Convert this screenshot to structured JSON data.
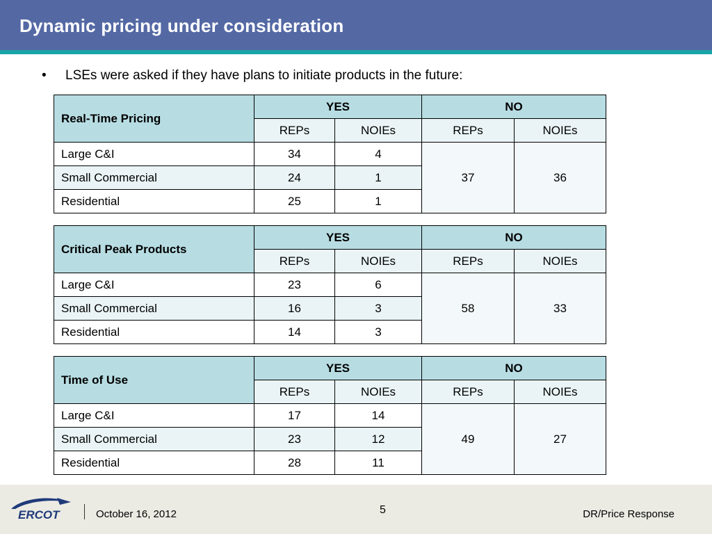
{
  "header": {
    "title": "Dynamic pricing under consideration"
  },
  "bullet": {
    "text": "LSEs were asked if they have plans to initiate products in the future:"
  },
  "tables": [
    {
      "name": "Real-Time Pricing",
      "yes_label": "YES",
      "no_label": "NO",
      "sub_headers": [
        "REPs",
        "NOIEs",
        "REPs",
        "NOIEs"
      ],
      "rows": [
        {
          "label": "Large C&I",
          "yes_reps": "34",
          "yes_noies": "4"
        },
        {
          "label": "Small Commercial",
          "yes_reps": "24",
          "yes_noies": "1"
        },
        {
          "label": "Residential",
          "yes_reps": "25",
          "yes_noies": "1"
        }
      ],
      "no_reps": "37",
      "no_noies": "36"
    },
    {
      "name": "Critical Peak Products",
      "yes_label": "YES",
      "no_label": "NO",
      "sub_headers": [
        "REPs",
        "NOIEs",
        "REPs",
        "NOIEs"
      ],
      "rows": [
        {
          "label": "Large C&I",
          "yes_reps": "23",
          "yes_noies": "6"
        },
        {
          "label": "Small Commercial",
          "yes_reps": "16",
          "yes_noies": "3"
        },
        {
          "label": "Residential",
          "yes_reps": "14",
          "yes_noies": "3"
        }
      ],
      "no_reps": "58",
      "no_noies": "33"
    },
    {
      "name": "Time of Use",
      "yes_label": "YES",
      "no_label": "NO",
      "sub_headers": [
        "REPs",
        "NOIEs",
        "REPs",
        "NOIEs"
      ],
      "rows": [
        {
          "label": "Large C&I",
          "yes_reps": "17",
          "yes_noies": "14"
        },
        {
          "label": "Small Commercial",
          "yes_reps": "23",
          "yes_noies": "12"
        },
        {
          "label": "Residential",
          "yes_reps": "28",
          "yes_noies": "11"
        }
      ],
      "no_reps": "49",
      "no_noies": "27"
    }
  ],
  "footer": {
    "logo_text": "ERCOT",
    "date": "October 16, 2012",
    "page_number": "5",
    "section": "DR/Price Response"
  },
  "colors": {
    "header_blue": "#5469a4",
    "header_stripe": "#1aa3a8",
    "table_header_teal": "#b7dde3",
    "logo_navy": "#1f3a7a"
  }
}
